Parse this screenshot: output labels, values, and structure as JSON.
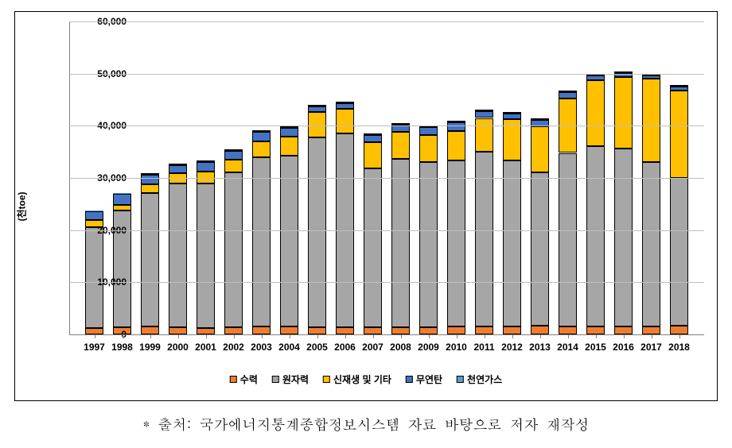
{
  "chart": {
    "type": "stacked-bar",
    "y_axis_title": "(천toe)",
    "ylim": [
      0,
      60000
    ],
    "ytick_step": 10000,
    "ytick_labels": [
      "0",
      "10,000",
      "20,000",
      "30,000",
      "40,000",
      "50,000",
      "60,000"
    ],
    "grid_color": "#bfbfbf",
    "background_color": "#ffffff",
    "bar_border_color": "#000000",
    "bar_width_ratio": 0.66,
    "categories": [
      "1997",
      "1998",
      "1999",
      "2000",
      "2001",
      "2002",
      "2003",
      "2004",
      "2005",
      "2006",
      "2007",
      "2008",
      "2009",
      "2010",
      "2011",
      "2012",
      "2013",
      "2014",
      "2015",
      "2016",
      "2017",
      "2018"
    ],
    "series": [
      {
        "name": "수력",
        "color": "#ed7d31",
        "values": [
          1200,
          1400,
          1500,
          1400,
          1200,
          1300,
          1600,
          1500,
          1400,
          1400,
          1300,
          1400,
          1400,
          1500,
          1600,
          1600,
          1700,
          1600,
          1500,
          1600,
          1600,
          1700
        ]
      },
      {
        "name": "원자력",
        "color": "#a6a6a6",
        "values": [
          19300,
          22300,
          25600,
          27500,
          27800,
          29700,
          32400,
          32700,
          36400,
          37100,
          30600,
          32200,
          31600,
          31800,
          33500,
          31800,
          29300,
          33200,
          34600,
          34100,
          31500,
          28300
        ]
      },
      {
        "name": "신재생 및 기타",
        "color": "#ffc000",
        "values": [
          1400,
          1200,
          1700,
          2000,
          2200,
          2500,
          3000,
          3700,
          4800,
          4700,
          4900,
          5200,
          5200,
          5700,
          6400,
          7800,
          8900,
          10400,
          12700,
          13700,
          15900,
          16800
        ]
      },
      {
        "name": "무연탄",
        "color": "#4472c4",
        "values": [
          1700,
          2100,
          1800,
          1500,
          1900,
          1700,
          1800,
          1700,
          1100,
          1100,
          1500,
          1400,
          1600,
          1600,
          1300,
          1100,
          1200,
          1200,
          800,
          700,
          700,
          700
        ]
      },
      {
        "name": "천연가스",
        "color": "#5b9bd5",
        "values": [
          100,
          100,
          200,
          200,
          200,
          200,
          200,
          200,
          200,
          200,
          200,
          200,
          200,
          200,
          200,
          200,
          200,
          200,
          200,
          200,
          200,
          300
        ]
      }
    ],
    "legend_labels": [
      "수력",
      "원자력",
      "신재생 및 기타",
      "무연탄",
      "천연가스"
    ],
    "legend_colors": [
      "#ed7d31",
      "#a6a6a6",
      "#ffc000",
      "#4472c4",
      "#5b9bd5"
    ],
    "label_fontsize": 12,
    "label_fontweight": 700
  },
  "footnote": "* 출처: 국가에너지통계종합정보시스템 자료 바탕으로 저자 재작성"
}
